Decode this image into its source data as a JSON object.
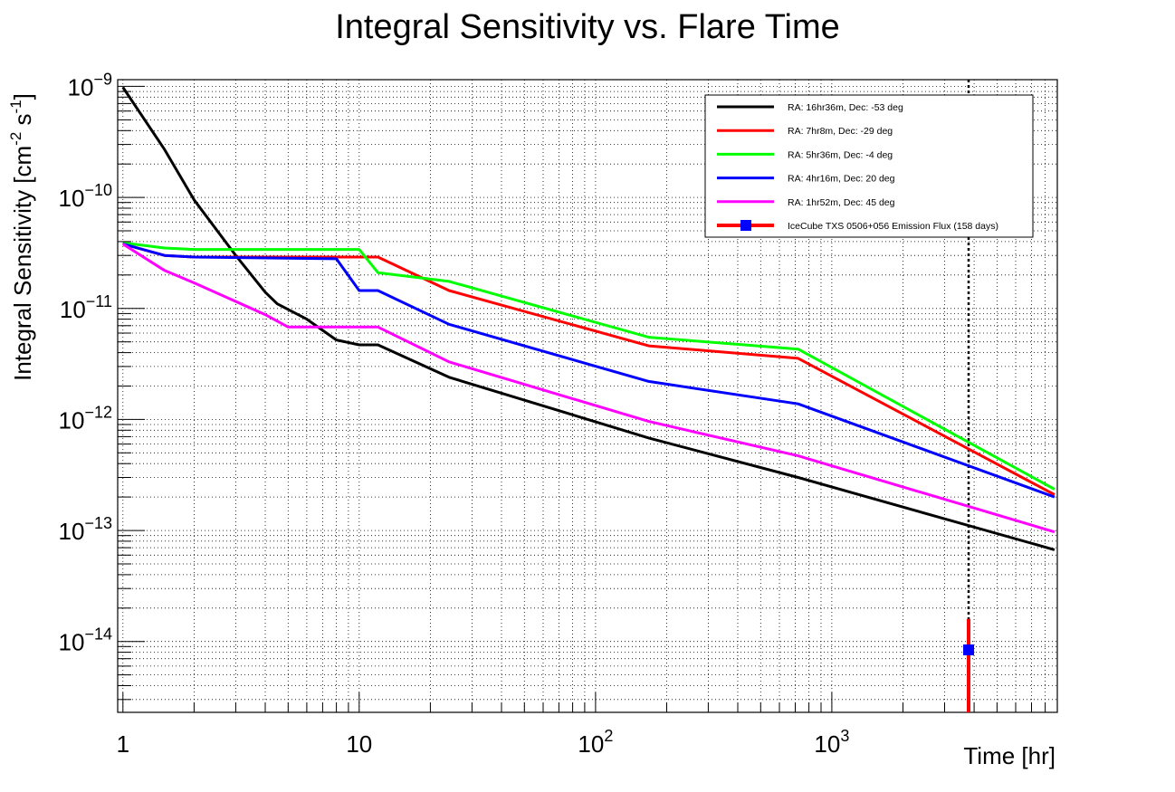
{
  "chart_data": {
    "type": "line",
    "title": "Integral Sensitivity vs. Flare Time",
    "xlabel": "Time [hr]",
    "ylabel": {
      "parts": [
        {
          "text": "Integral Sensitivity [cm"
        },
        {
          "text": "-2",
          "sup": true
        },
        {
          "text": " s"
        },
        {
          "text": "-1",
          "sup": true
        },
        {
          "text": "]"
        }
      ]
    },
    "x_scale": "log",
    "y_scale": "log",
    "xlim": [
      0.95,
      9000
    ],
    "ylim": [
      2.3e-15,
      1.15e-09
    ],
    "grid": true,
    "x_ticks": [
      {
        "value": 1,
        "base": "1"
      },
      {
        "value": 10,
        "base": "10"
      },
      {
        "value": 100,
        "base": "10",
        "exp": "2"
      },
      {
        "value": 1000,
        "base": "10",
        "exp": "3"
      }
    ],
    "y_ticks": [
      {
        "value": 1e-09,
        "base": "10",
        "exp": "−9"
      },
      {
        "value": 1e-10,
        "base": "10",
        "exp": "−10"
      },
      {
        "value": 1e-11,
        "base": "10",
        "exp": "−11"
      },
      {
        "value": 1e-12,
        "base": "10",
        "exp": "−12"
      },
      {
        "value": 1e-13,
        "base": "10",
        "exp": "−13"
      },
      {
        "value": 1e-14,
        "base": "10",
        "exp": "−14"
      }
    ],
    "legend_position": "top-right",
    "series": [
      {
        "name": "RA: 16hr36m, Dec: -53 deg",
        "color": "#000000",
        "x": [
          1,
          1.5,
          2,
          3,
          4,
          4.5,
          6,
          8,
          10,
          12,
          24,
          168,
          720,
          8760
        ],
        "y": [
          9.8e-10,
          2.7e-10,
          9.5e-11,
          3e-11,
          1.4e-11,
          1.1e-11,
          8e-12,
          5.2e-12,
          4.7e-12,
          4.7e-12,
          2.4e-12,
          6.8e-13,
          3e-13,
          6.7e-14
        ]
      },
      {
        "name": "RA: 7hr8m, Dec: -29 deg",
        "color": "#ff0000",
        "x": [
          1,
          1.5,
          2,
          8,
          10,
          12,
          24,
          168,
          720,
          8760
        ],
        "y": [
          3.8e-11,
          3e-11,
          2.9e-11,
          2.9e-11,
          2.9e-11,
          2.9e-11,
          1.45e-11,
          4.6e-12,
          3.55e-12,
          2.1e-13
        ]
      },
      {
        "name": "RA: 5hr36m, Dec: -4 deg",
        "color": "#00ff00",
        "x": [
          1,
          1.5,
          2,
          8,
          10,
          12,
          24,
          168,
          720,
          8760
        ],
        "y": [
          3.9e-11,
          3.5e-11,
          3.4e-11,
          3.4e-11,
          3.4e-11,
          2.1e-11,
          1.75e-11,
          5.5e-12,
          4.3e-12,
          2.35e-13
        ]
      },
      {
        "name": "RA: 4hr16m, Dec: 20 deg",
        "color": "#0000ff",
        "x": [
          1,
          1.5,
          2,
          8,
          10,
          12,
          24,
          168,
          720,
          8760
        ],
        "y": [
          3.8e-11,
          3e-11,
          2.9e-11,
          2.8e-11,
          1.45e-11,
          1.45e-11,
          7.2e-12,
          2.2e-12,
          1.38e-12,
          2e-13
        ]
      },
      {
        "name": "RA: 1hr52m, Dec: 45 deg",
        "color": "#ff00ff",
        "x": [
          1,
          1.5,
          2,
          4,
          5,
          8,
          10,
          12,
          24,
          168,
          720,
          8760
        ],
        "y": [
          3.8e-11,
          2.2e-11,
          1.7e-11,
          8.8e-12,
          6.8e-12,
          6.8e-12,
          6.8e-12,
          6.8e-12,
          3.3e-12,
          9.6e-13,
          4.7e-13,
          9.7e-14
        ]
      }
    ],
    "point_series": {
      "name": "IceCube TXS 0506+056 Emission Flux (158 days)",
      "marker_color": "#0000ff",
      "bar_color": "#ff0000",
      "x": 3792,
      "y": 8.4e-15,
      "y_err_high": 1.6e-14
    },
    "vline": {
      "x": 3792,
      "style": "dotted",
      "color": "#000000"
    }
  }
}
